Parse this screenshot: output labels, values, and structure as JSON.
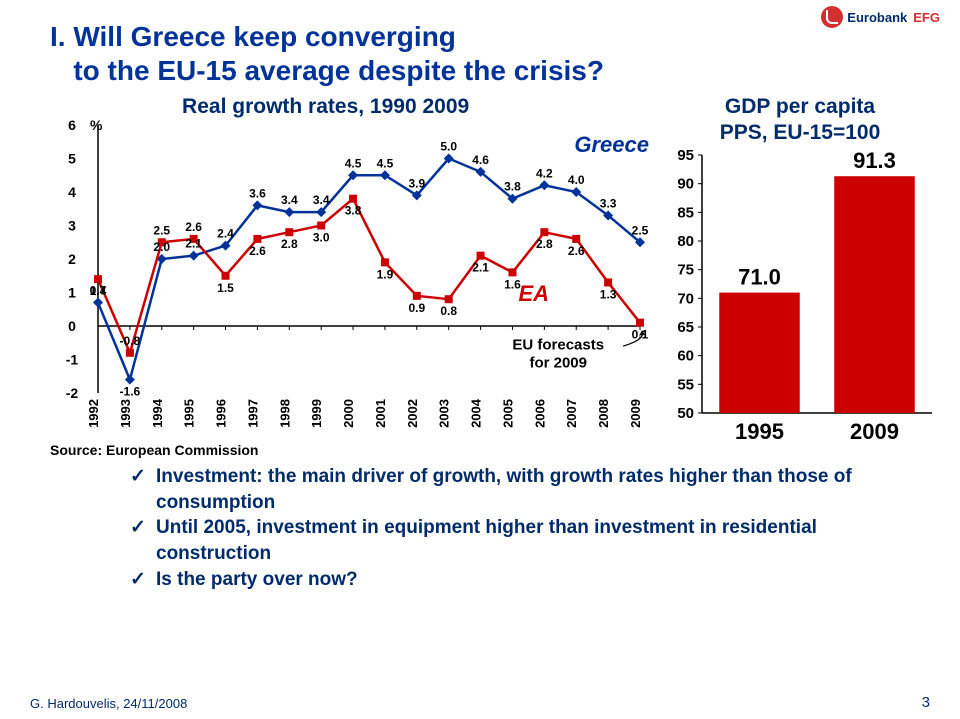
{
  "logo": {
    "name": "Eurobank",
    "suffix": "EFG"
  },
  "title": {
    "prefix": "I.",
    "line1": "Will Greece keep converging",
    "line2": "to the EU-15 average despite the crisis?",
    "color": "#003399"
  },
  "line_chart": {
    "type": "line",
    "subtitle": "Real growth rates, 1990 2009",
    "subtitle_color": "#002b6b",
    "years": [
      "1992",
      "1993",
      "1994",
      "1995",
      "1996",
      "1997",
      "1998",
      "1999",
      "2000",
      "2001",
      "2002",
      "2003",
      "2004",
      "2005",
      "2006",
      "2007",
      "2008",
      "2009"
    ],
    "y_axis_label": "%",
    "y_ticks": [
      -2,
      -1,
      0,
      1,
      2,
      3,
      4,
      5,
      6
    ],
    "greece": {
      "name": "Greece",
      "color": "#003399",
      "values": [
        0.7,
        -1.6,
        2.0,
        2.1,
        2.4,
        3.6,
        3.4,
        3.4,
        4.5,
        4.5,
        3.9,
        5.0,
        4.6,
        3.8,
        4.2,
        4.0,
        3.3,
        2.5
      ],
      "labels": [
        "0.7",
        "-1.6",
        "2.0",
        "2.1",
        "2.4",
        "3.6",
        "3.4",
        "3.4",
        "4.5",
        "4.5",
        "3.9",
        "5.0",
        "4.6",
        "3.8",
        "4.2",
        "4.0",
        "3.3",
        "2.5"
      ]
    },
    "ea": {
      "name": "EA",
      "color": "#cc0000",
      "values": [
        1.4,
        -0.8,
        2.5,
        2.6,
        1.5,
        2.6,
        2.8,
        3.0,
        3.8,
        1.9,
        0.9,
        0.8,
        2.1,
        1.6,
        2.8,
        2.6,
        1.3,
        0.1
      ],
      "labels": [
        "1.4",
        "-0.8",
        "2.5",
        "2.6",
        "1.5",
        "2.6",
        "2.8",
        "3.0",
        "3.8",
        "1.9",
        "0.9",
        "0.8",
        "2.1",
        "1.6",
        "2.8",
        "2.6",
        "1.3",
        "0.1"
      ]
    },
    "annotation": "EU forecasts\nfor 2009",
    "background": "#ffffff",
    "marker_size": 4,
    "line_width": 2.5,
    "label_fontsize": 12,
    "tick_fontsize": 14,
    "x_tick_fontsize": 13
  },
  "bar_chart": {
    "type": "bar",
    "subtitle1": "GDP per capita",
    "subtitle2": "PPS, EU-15=100",
    "subtitle_color": "#002b6b",
    "categories": [
      "1995",
      "2009"
    ],
    "values": [
      71.0,
      91.3
    ],
    "value_labels": [
      "71.0",
      "91.3"
    ],
    "bar_color": "#cc0000",
    "ylim": [
      50,
      95
    ],
    "yticks": [
      50,
      55,
      60,
      65,
      70,
      75,
      80,
      85,
      90,
      95
    ],
    "cat_fontsize": 22,
    "val_fontsize": 22,
    "tick_fontsize": 15,
    "bar_width": 0.7,
    "background": "#ffffff"
  },
  "source": "Source: European Commission",
  "bullets": [
    "Investment: the main driver of growth, with growth rates higher than those of consumption",
    "Until 2005, investment in equipment higher than investment in residential construction",
    "Is the party over now?"
  ],
  "footer": "G. Hardouvelis, 24/11/2008",
  "page_number": "3"
}
